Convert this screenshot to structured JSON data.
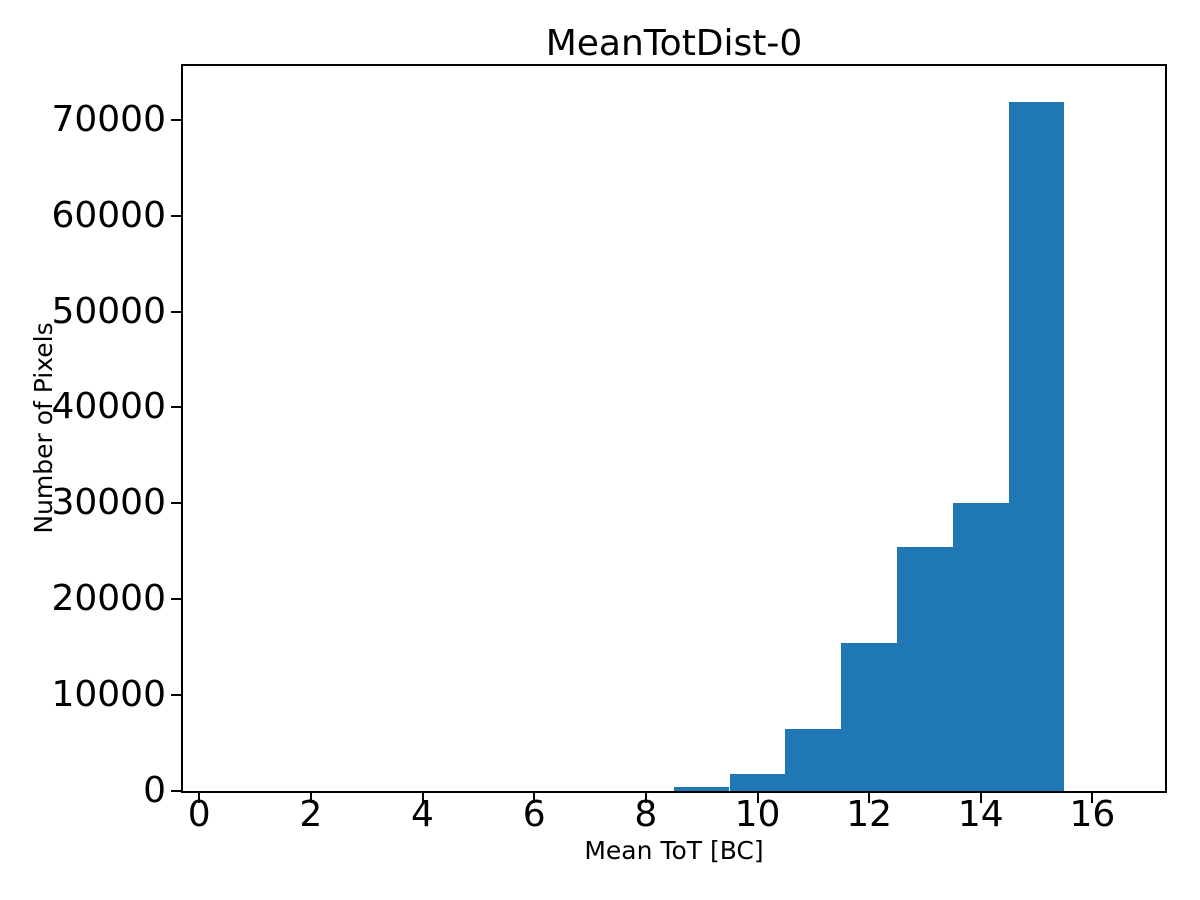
{
  "figure": {
    "background_color": "#ffffff",
    "spine_color": "#000000"
  },
  "chart_data": {
    "type": "bar",
    "title": "MeanTotDist-0",
    "xlabel": "Mean ToT [BC]",
    "ylabel": "Number of Pixels",
    "bar_color": "#1f77b4",
    "bin_edges": [
      8.5,
      9.5,
      10.5,
      11.5,
      12.5,
      13.5,
      14.5,
      15.5
    ],
    "counts": [
      400,
      1800,
      6500,
      15400,
      25500,
      30000,
      71900
    ],
    "xticks": [
      0,
      2,
      4,
      6,
      8,
      10,
      12,
      14,
      16
    ],
    "yticks": [
      0,
      10000,
      20000,
      30000,
      40000,
      50000,
      60000,
      70000
    ],
    "xlim": [
      -0.29,
      17.3
    ],
    "ylim": [
      0,
      75600
    ],
    "grid": false,
    "legend_position": "none"
  }
}
